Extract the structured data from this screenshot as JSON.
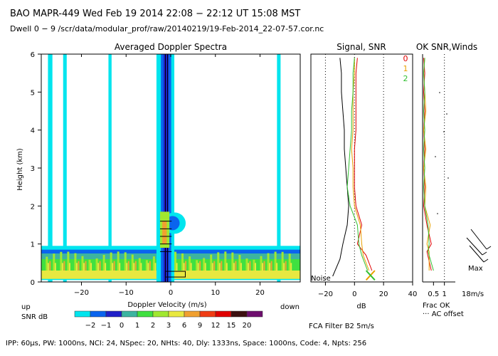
{
  "header": {
    "line1": "BAO  MAPR-449  Wed Feb 19 2014 22:08 − 22:12 UT 15:08 MST",
    "line2": "Dwell   0 −  9   /scr/data/modular_prof/raw/20140219/19-Feb-2014_22-07-57.cor.nc"
  },
  "panels": {
    "spectra_title": "Averaged Doppler Spectra",
    "signal_title": "Signal, SNR",
    "wind_title": "OK SNR,Winds",
    "noise_label": "Noise",
    "frac_ok_label": "Frac OK",
    "ac_offset_label": "··· AC offset",
    "max_label": "Max",
    "max_value": "18m/s",
    "fca_label": "FCA Filter B2   5m/s",
    "wind_legend": [
      "0",
      "1",
      "2"
    ]
  },
  "snr_legend": {
    "up_label": "up",
    "down_label": "down",
    "label": "SNR dB",
    "ticks": [
      "−2",
      "−1",
      "0",
      "1",
      "2",
      "3",
      "6",
      "9",
      "12",
      "15",
      "20"
    ],
    "colors": [
      "#00e5ee",
      "#0a64ee",
      "#2020c8",
      "#3cb4a0",
      "#40e040",
      "#a0e830",
      "#e8e840",
      "#f0a030",
      "#f03c14",
      "#e00000",
      "#3c1010",
      "#6e0e6e"
    ]
  },
  "footer": "IPP:  60μs,  PW: 1000ns,  NCI:  24,  NSpec: 20, NHts: 40,  Dly: 1333ns,  Space: 1000ns,  Code: 4,  Npts: 256",
  "colors": {
    "beam0": "#e00000",
    "beam1": "#e8a000",
    "beam2": "#30c030",
    "cyan": "#00e5ee"
  },
  "chart_data": [
    {
      "type": "heatmap",
      "title": "Averaged Doppler Spectra",
      "xlabel": "Doppler Velocity (m/s)",
      "ylabel": "Height (km)",
      "xlim": [
        -29,
        29
      ],
      "ylim": [
        0,
        6
      ],
      "xticks": [
        -20,
        -10,
        0,
        10,
        20
      ],
      "xtick_labels": [
        "−20",
        "−10",
        "0",
        "10",
        "20"
      ],
      "yticks": [
        0,
        1,
        2,
        3,
        4,
        5,
        6
      ],
      "ytick_labels": [
        "0",
        "1",
        "2",
        "3",
        "4",
        "5",
        "6"
      ]
    },
    {
      "type": "line",
      "title": "Signal, SNR",
      "xlabel": "dB",
      "xlim": [
        -30,
        40
      ],
      "ylim": [
        0,
        6
      ],
      "xticks": [
        -20,
        0,
        20,
        40
      ],
      "xtick_labels": [
        "−20",
        "0",
        "20",
        "40"
      ],
      "series": [
        {
          "y": [
            0.15,
            0.6,
            1.0,
            1.5,
            2.0,
            2.5,
            3.0,
            3.5,
            4.0,
            4.5,
            5.0,
            5.5,
            5.9
          ],
          "x": [
            -15,
            -10,
            -8,
            -5,
            -4,
            -5,
            -6,
            -7,
            -7,
            -8,
            -9,
            -9,
            -10
          ]
        },
        {
          "y": [
            0.3,
            0.7,
            1.0,
            1.5,
            2.0,
            2.5,
            3.0,
            3.5,
            4.0,
            4.5,
            5.0,
            5.5,
            5.9
          ],
          "x": [
            12,
            8,
            2,
            5,
            1,
            0,
            0,
            0,
            1,
            1,
            1,
            1,
            2
          ]
        },
        {
          "y": [
            0.3,
            0.7,
            1.0,
            1.5,
            2.0,
            2.5,
            3.0,
            3.5,
            4.0,
            4.5,
            5.0,
            5.5,
            5.9
          ],
          "x": [
            10,
            6,
            5,
            4,
            0,
            -1,
            -1,
            -2,
            -1,
            -1,
            -1,
            0,
            0
          ]
        },
        {
          "y": [
            0.3,
            0.7,
            1.0,
            1.5,
            2.0,
            2.5,
            3.0,
            3.5,
            4.0,
            4.5,
            5.0,
            5.5,
            5.9
          ],
          "x": [
            9,
            5,
            3,
            2,
            -3,
            -5,
            -4,
            -3,
            -2,
            -2,
            -1,
            -1,
            0
          ]
        }
      ]
    },
    {
      "type": "line",
      "title": "OK SNR,Winds",
      "xlabel": "Frac OK",
      "xlim": [
        0,
        1.5
      ],
      "ylim": [
        0,
        6
      ],
      "xticks": [
        0.5,
        1
      ],
      "xtick_labels": [
        "0.5",
        "1"
      ],
      "series": [
        {
          "name": "0",
          "y": [
            0.3,
            0.8,
            1.0,
            1.5,
            2.0,
            2.5,
            3.0,
            3.5,
            4.0,
            4.5,
            5.0,
            5.5,
            5.9
          ],
          "x": [
            0.4,
            0.2,
            0.4,
            0.2,
            0.05,
            0.1,
            0.05,
            0.1,
            0.05,
            0.1,
            0.05,
            0.1,
            0.05
          ]
        },
        {
          "name": "1",
          "y": [
            0.3,
            0.8,
            1.0,
            1.5,
            2.0,
            2.5,
            3.0,
            3.5,
            4.0,
            4.5,
            5.0,
            5.5,
            5.9
          ],
          "x": [
            0.3,
            0.3,
            0.2,
            0.35,
            0.1,
            0.15,
            0.05,
            0.15,
            0.05,
            0.15,
            0.1,
            0.05,
            0.1
          ]
        },
        {
          "name": "2",
          "y": [
            0.3,
            0.8,
            1.0,
            1.5,
            2.0,
            2.5,
            3.0,
            3.5,
            4.0,
            4.5,
            5.0,
            5.5,
            5.9
          ],
          "x": [
            0.5,
            0.25,
            0.3,
            0.25,
            0.1,
            0.05,
            0.1,
            0.05,
            0.1,
            0.05,
            0.1,
            0.05,
            0.1
          ]
        }
      ]
    }
  ]
}
